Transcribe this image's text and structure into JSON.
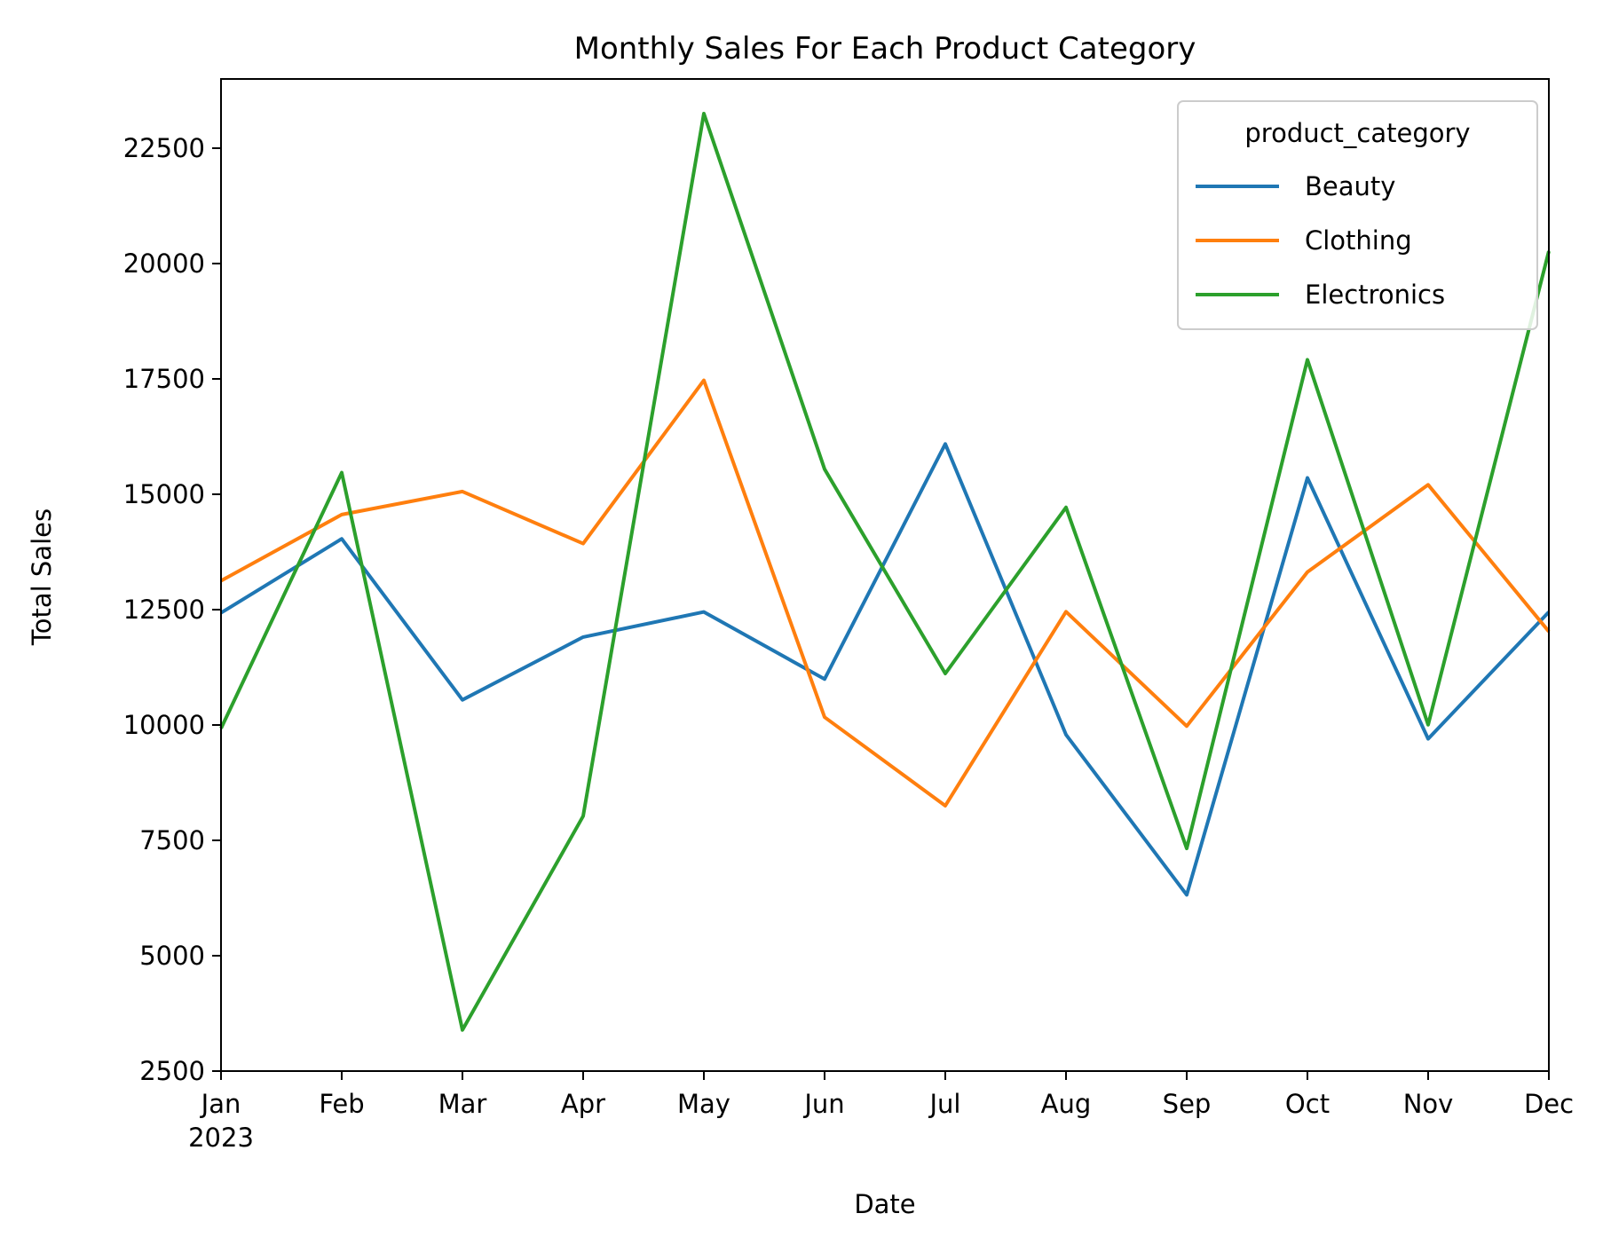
{
  "chart_data": {
    "type": "line",
    "title": "Monthly Sales For Each Product Category",
    "xlabel": "Date",
    "ylabel": "Total Sales",
    "x": [
      "Jan",
      "Feb",
      "Mar",
      "Apr",
      "May",
      "Jun",
      "Jul",
      "Aug",
      "Sep",
      "Oct",
      "Nov",
      "Dec"
    ],
    "x_year_label": "2023",
    "ylim": [
      2500,
      24000
    ],
    "yticks": [
      2500,
      5000,
      7500,
      10000,
      12500,
      15000,
      17500,
      20000,
      22500
    ],
    "grid": false,
    "legend": {
      "title": "product_category",
      "placement": "top-right"
    },
    "series": [
      {
        "name": "Beauty",
        "color": "#1f77b4",
        "values": [
          12430,
          14035,
          10545,
          11905,
          12450,
          10995,
          16090,
          9790,
          6320,
          15355,
          9700,
          12450
        ]
      },
      {
        "name": "Clothing",
        "color": "#ff7f0e",
        "values": [
          13125,
          14560,
          15060,
          13930,
          17470,
          10170,
          8250,
          12455,
          9975,
          13315,
          15205,
          12025
        ]
      },
      {
        "name": "Electronics",
        "color": "#2ca02c",
        "values": [
          9925,
          15470,
          3390,
          8025,
          23250,
          15545,
          11115,
          14715,
          7325,
          17915,
          10005,
          20270
        ]
      }
    ]
  }
}
